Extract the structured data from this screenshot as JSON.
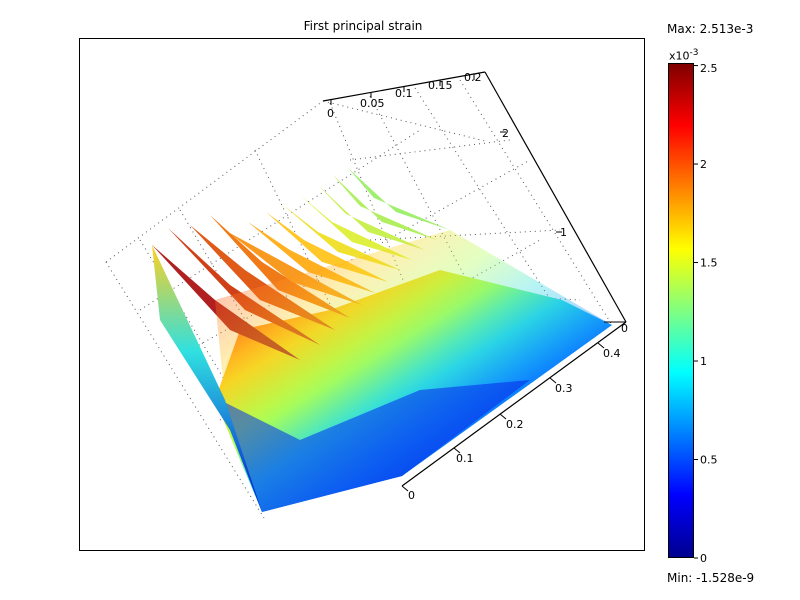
{
  "chart_data": {
    "type": "surface",
    "title": "First principal strain",
    "colormap": "jet",
    "colorbar": {
      "max_label": "Max: 2.513e-3",
      "min_label": "Min: -1.528e-9",
      "multiplier_base": "x10",
      "multiplier_exp": "-3",
      "ticks": [
        {
          "label": "2.5",
          "value": 2.5
        },
        {
          "label": "2",
          "value": 2.0
        },
        {
          "label": "1.5",
          "value": 1.5
        },
        {
          "label": "1",
          "value": 1.0
        },
        {
          "label": "0.5",
          "value": 0.5
        },
        {
          "label": "0",
          "value": 0.0
        }
      ],
      "range": [
        0,
        2.513
      ]
    },
    "axes": {
      "x": {
        "ticks": [
          "0",
          "0.1",
          "0.2",
          "0.3",
          "0.4"
        ],
        "range": [
          0,
          0.45
        ]
      },
      "y": {
        "ticks": [
          "0",
          "0.05",
          "0.1",
          "0.15",
          "0.2"
        ],
        "range": [
          0,
          0.2
        ]
      },
      "z": {
        "ticks": [
          "0",
          "1",
          "2"
        ],
        "range": [
          0,
          2.5
        ]
      }
    },
    "max_value": 0.002513,
    "min_value": -1.528e-09
  },
  "colors": {
    "jet": [
      "#00008f",
      "#0000ff",
      "#0080ff",
      "#00ffff",
      "#80ff80",
      "#ffff00",
      "#ff8000",
      "#ff0000",
      "#800000"
    ]
  }
}
